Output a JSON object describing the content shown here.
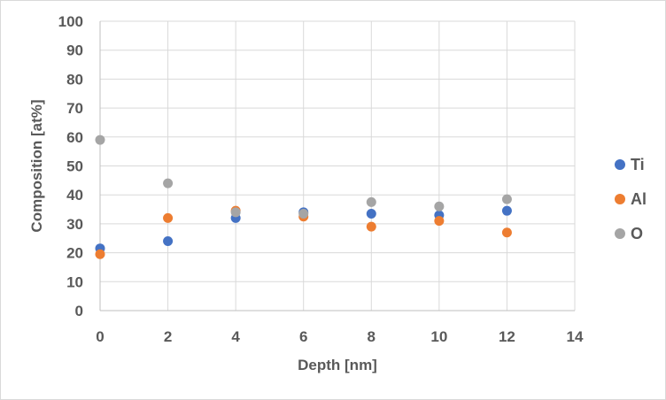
{
  "chart_data": {
    "type": "scatter",
    "title": "",
    "xlabel": "Depth [nm]",
    "ylabel": "Composition [at%]",
    "xlim": [
      0,
      14
    ],
    "ylim": [
      0,
      100
    ],
    "xticks": [
      0,
      2,
      4,
      6,
      8,
      10,
      12,
      14
    ],
    "yticks": [
      0,
      10,
      20,
      30,
      40,
      50,
      60,
      70,
      80,
      90,
      100
    ],
    "grid": true,
    "legend_position": "right",
    "series": [
      {
        "name": "Ti",
        "color": "#4472c4",
        "points": [
          [
            0,
            21.5
          ],
          [
            2,
            24
          ],
          [
            4,
            32
          ],
          [
            6,
            34
          ],
          [
            8,
            33.5
          ],
          [
            10,
            33
          ],
          [
            12,
            34.5
          ]
        ]
      },
      {
        "name": "Al",
        "color": "#ed7d31",
        "points": [
          [
            0,
            19.5
          ],
          [
            2,
            32
          ],
          [
            4,
            34.5
          ],
          [
            6,
            32.5
          ],
          [
            8,
            29
          ],
          [
            10,
            31
          ],
          [
            12,
            27
          ]
        ]
      },
      {
        "name": "O",
        "color": "#a5a5a5",
        "points": [
          [
            0,
            59
          ],
          [
            2,
            44
          ],
          [
            4,
            34
          ],
          [
            6,
            33.5
          ],
          [
            8,
            37.5
          ],
          [
            10,
            36
          ],
          [
            12,
            38.5
          ]
        ]
      }
    ]
  }
}
